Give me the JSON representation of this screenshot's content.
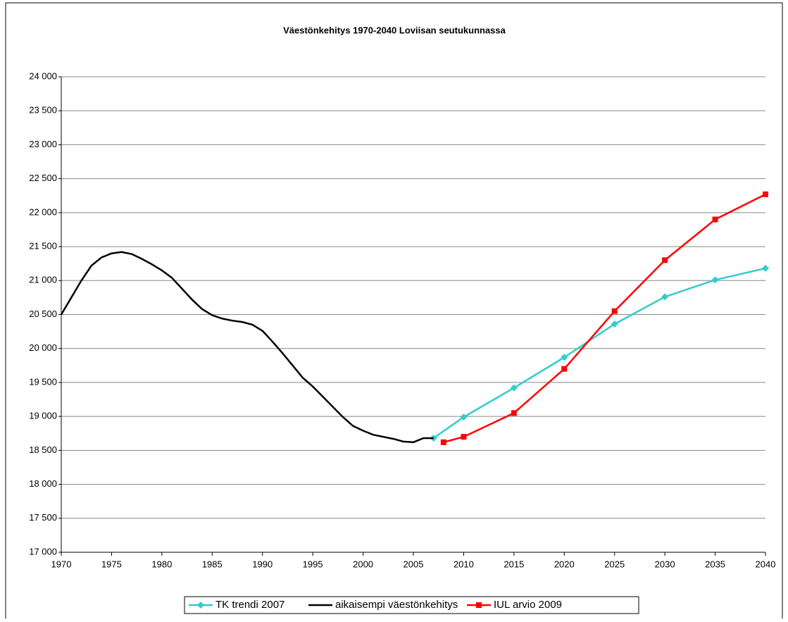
{
  "chart_data": {
    "type": "line",
    "title": "Väestönkehitys 1970-2040 Loviisan seutukunnassa",
    "xlim": [
      1970,
      2040
    ],
    "xticks": [
      1970,
      1975,
      1980,
      1985,
      1990,
      1995,
      2000,
      2005,
      2010,
      2015,
      2020,
      2025,
      2030,
      2035,
      2040
    ],
    "ylim": [
      17000,
      24000
    ],
    "yticks": [
      {
        "value": 17000,
        "label": "17 000"
      },
      {
        "value": 17500,
        "label": "17 500"
      },
      {
        "value": 18000,
        "label": "18 000"
      },
      {
        "value": 18500,
        "label": "18 500"
      },
      {
        "value": 19000,
        "label": "19 000"
      },
      {
        "value": 19500,
        "label": "19 500"
      },
      {
        "value": 20000,
        "label": "20 000"
      },
      {
        "value": 20500,
        "label": "20 500"
      },
      {
        "value": 21000,
        "label": "21 000"
      },
      {
        "value": 21500,
        "label": "21 500"
      },
      {
        "value": 22000,
        "label": "22 000"
      },
      {
        "value": 22500,
        "label": "22 500"
      },
      {
        "value": 23000,
        "label": "23 000"
      },
      {
        "value": 23500,
        "label": "23 500"
      },
      {
        "value": 24000,
        "label": "24 000"
      }
    ],
    "grid": true,
    "legend": "bottom",
    "series": [
      {
        "name": "TK trendi 2007",
        "color": "#33cccc",
        "marker": "diamond",
        "x": [
          2007,
          2010,
          2015,
          2020,
          2025,
          2030,
          2035,
          2040
        ],
        "values": [
          18680,
          18990,
          19420,
          19870,
          20360,
          20760,
          21010,
          21180
        ]
      },
      {
        "name": "aikaisempi väestönkehitys",
        "color": "#000000",
        "marker": "none",
        "x": [
          1970,
          1971,
          1972,
          1973,
          1974,
          1975,
          1976,
          1977,
          1978,
          1979,
          1980,
          1981,
          1982,
          1983,
          1984,
          1985,
          1986,
          1987,
          1988,
          1989,
          1990,
          1991,
          1992,
          1993,
          1994,
          1995,
          1996,
          1997,
          1998,
          1999,
          2000,
          2001,
          2002,
          2003,
          2004,
          2005,
          2006,
          2007
        ],
        "values": [
          20500,
          20750,
          21000,
          21220,
          21340,
          21400,
          21420,
          21390,
          21320,
          21240,
          21150,
          21040,
          20880,
          20720,
          20580,
          20490,
          20440,
          20410,
          20390,
          20350,
          20260,
          20100,
          19930,
          19750,
          19570,
          19440,
          19290,
          19140,
          18990,
          18860,
          18790,
          18730,
          18700,
          18670,
          18630,
          18620,
          18680,
          18680
        ]
      },
      {
        "name": "IUL arvio 2009",
        "color": "#ff0000",
        "marker": "square",
        "x": [
          2008,
          2010,
          2015,
          2020,
          2025,
          2030,
          2035,
          2040
        ],
        "values": [
          18620,
          18700,
          19050,
          19700,
          20550,
          21300,
          21900,
          22270
        ]
      }
    ]
  }
}
